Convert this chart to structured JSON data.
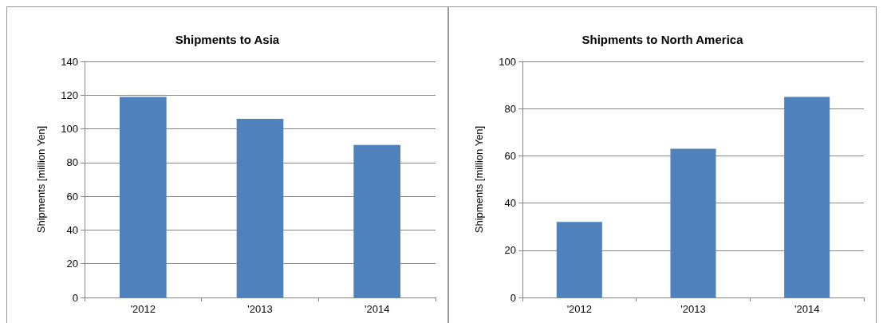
{
  "chart_data": [
    {
      "type": "bar",
      "title": "Shipments to Asia",
      "ylabel": "Shipments [million Yen]",
      "categories": [
        "'2012",
        "'2013",
        "'2014"
      ],
      "values": [
        119,
        106,
        90.5
      ],
      "color": "#4f81bd",
      "ylim": [
        0,
        140
      ],
      "yticks": [
        0,
        20,
        40,
        60,
        80,
        100,
        120,
        140
      ],
      "grid": "y"
    },
    {
      "type": "bar",
      "title": "Shipments to North America",
      "ylabel": "Shipments [million Yen]",
      "categories": [
        "'2012",
        "'2013",
        "'2014"
      ],
      "values": [
        32,
        63,
        85
      ],
      "color": "#4f81bd",
      "ylim": [
        0,
        100
      ],
      "yticks": [
        0,
        20,
        40,
        60,
        80,
        100
      ],
      "grid": "y"
    }
  ]
}
